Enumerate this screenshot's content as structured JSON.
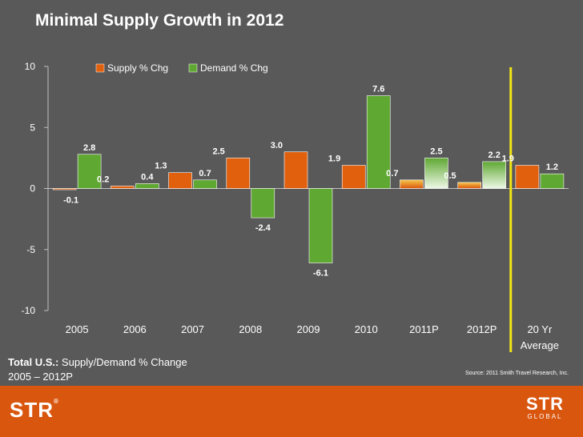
{
  "title": "Minimal Supply Growth in 2012",
  "chart_data": {
    "type": "bar",
    "title": "Minimal Supply Growth in 2012",
    "categories": [
      "2005",
      "2006",
      "2007",
      "2008",
      "2009",
      "2010",
      "2011P",
      "2012P",
      "20 Yr Average"
    ],
    "series": [
      {
        "name": "Supply % Chg",
        "color": "#e0600e",
        "values": [
          -0.1,
          0.2,
          1.3,
          2.5,
          3.0,
          1.9,
          0.7,
          0.5,
          1.9
        ]
      },
      {
        "name": "Demand % Chg",
        "color": "#5fa832",
        "values": [
          2.8,
          0.4,
          0.7,
          -2.4,
          -6.1,
          7.6,
          2.5,
          2.2,
          1.2
        ]
      }
    ],
    "yticks": [
      10,
      5,
      0,
      -5,
      -10
    ],
    "ylim": [
      -10,
      10
    ],
    "legend": "top",
    "projected_categories": [
      "2011P",
      "2012P"
    ],
    "divider_after": "2012P"
  },
  "subtitle": {
    "strong": "Total U.S.:",
    "line1": " Supply/Demand % Change",
    "line2": "2005 – 2012P"
  },
  "source": "Source: 2011 Smith Travel Research, Inc.",
  "footer": {
    "logo_left": "STR",
    "logo_left_mark": "®",
    "logo_right": "STR",
    "logo_right_sub": "GLOBAL"
  },
  "colors": {
    "background": "#595959",
    "footer": "#d9560f",
    "divider": "#f2e614"
  }
}
